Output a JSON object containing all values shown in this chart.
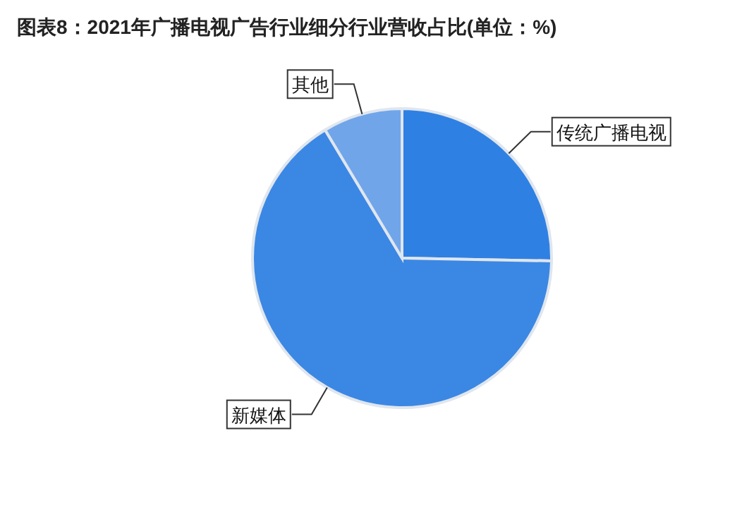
{
  "chart_data": {
    "type": "pie",
    "title": "图表8：2021年广播电视广告行业细分行业营收占比(单位：%)",
    "categories": [
      "传统广播电视",
      "新媒体",
      "其他"
    ],
    "values": [
      25.3,
      66.1,
      8.6
    ],
    "colors": [
      "#2f80e3",
      "#3b87e4",
      "#70a5ea"
    ],
    "legend": false
  }
}
